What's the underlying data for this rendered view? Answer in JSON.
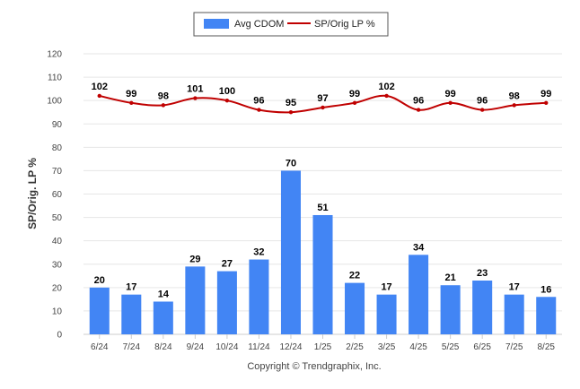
{
  "chart_data": {
    "type": "bar",
    "categories": [
      "6/24",
      "7/24",
      "8/24",
      "9/24",
      "10/24",
      "11/24",
      "12/24",
      "1/25",
      "2/25",
      "3/25",
      "4/25",
      "5/25",
      "6/25",
      "7/25",
      "8/25"
    ],
    "series": [
      {
        "name": "Avg CDOM",
        "type": "bar",
        "color": "#4285f4",
        "values": [
          20,
          17,
          14,
          29,
          27,
          32,
          70,
          51,
          22,
          17,
          34,
          21,
          23,
          17,
          16
        ]
      },
      {
        "name": "SP/Orig LP %",
        "type": "line",
        "color": "#c00000",
        "values": [
          102,
          99,
          98,
          101,
          100,
          96,
          95,
          97,
          99,
          102,
          96,
          99,
          96,
          98,
          99
        ]
      }
    ],
    "ylabel": "SP/Orig. LP %",
    "ylim": [
      0,
      120
    ],
    "yticks": [
      0,
      10,
      20,
      30,
      40,
      50,
      60,
      70,
      80,
      90,
      100,
      110,
      120
    ],
    "grid": true,
    "legend_position": "top-center",
    "credit": "Copyright © Trendgraphix, Inc."
  }
}
